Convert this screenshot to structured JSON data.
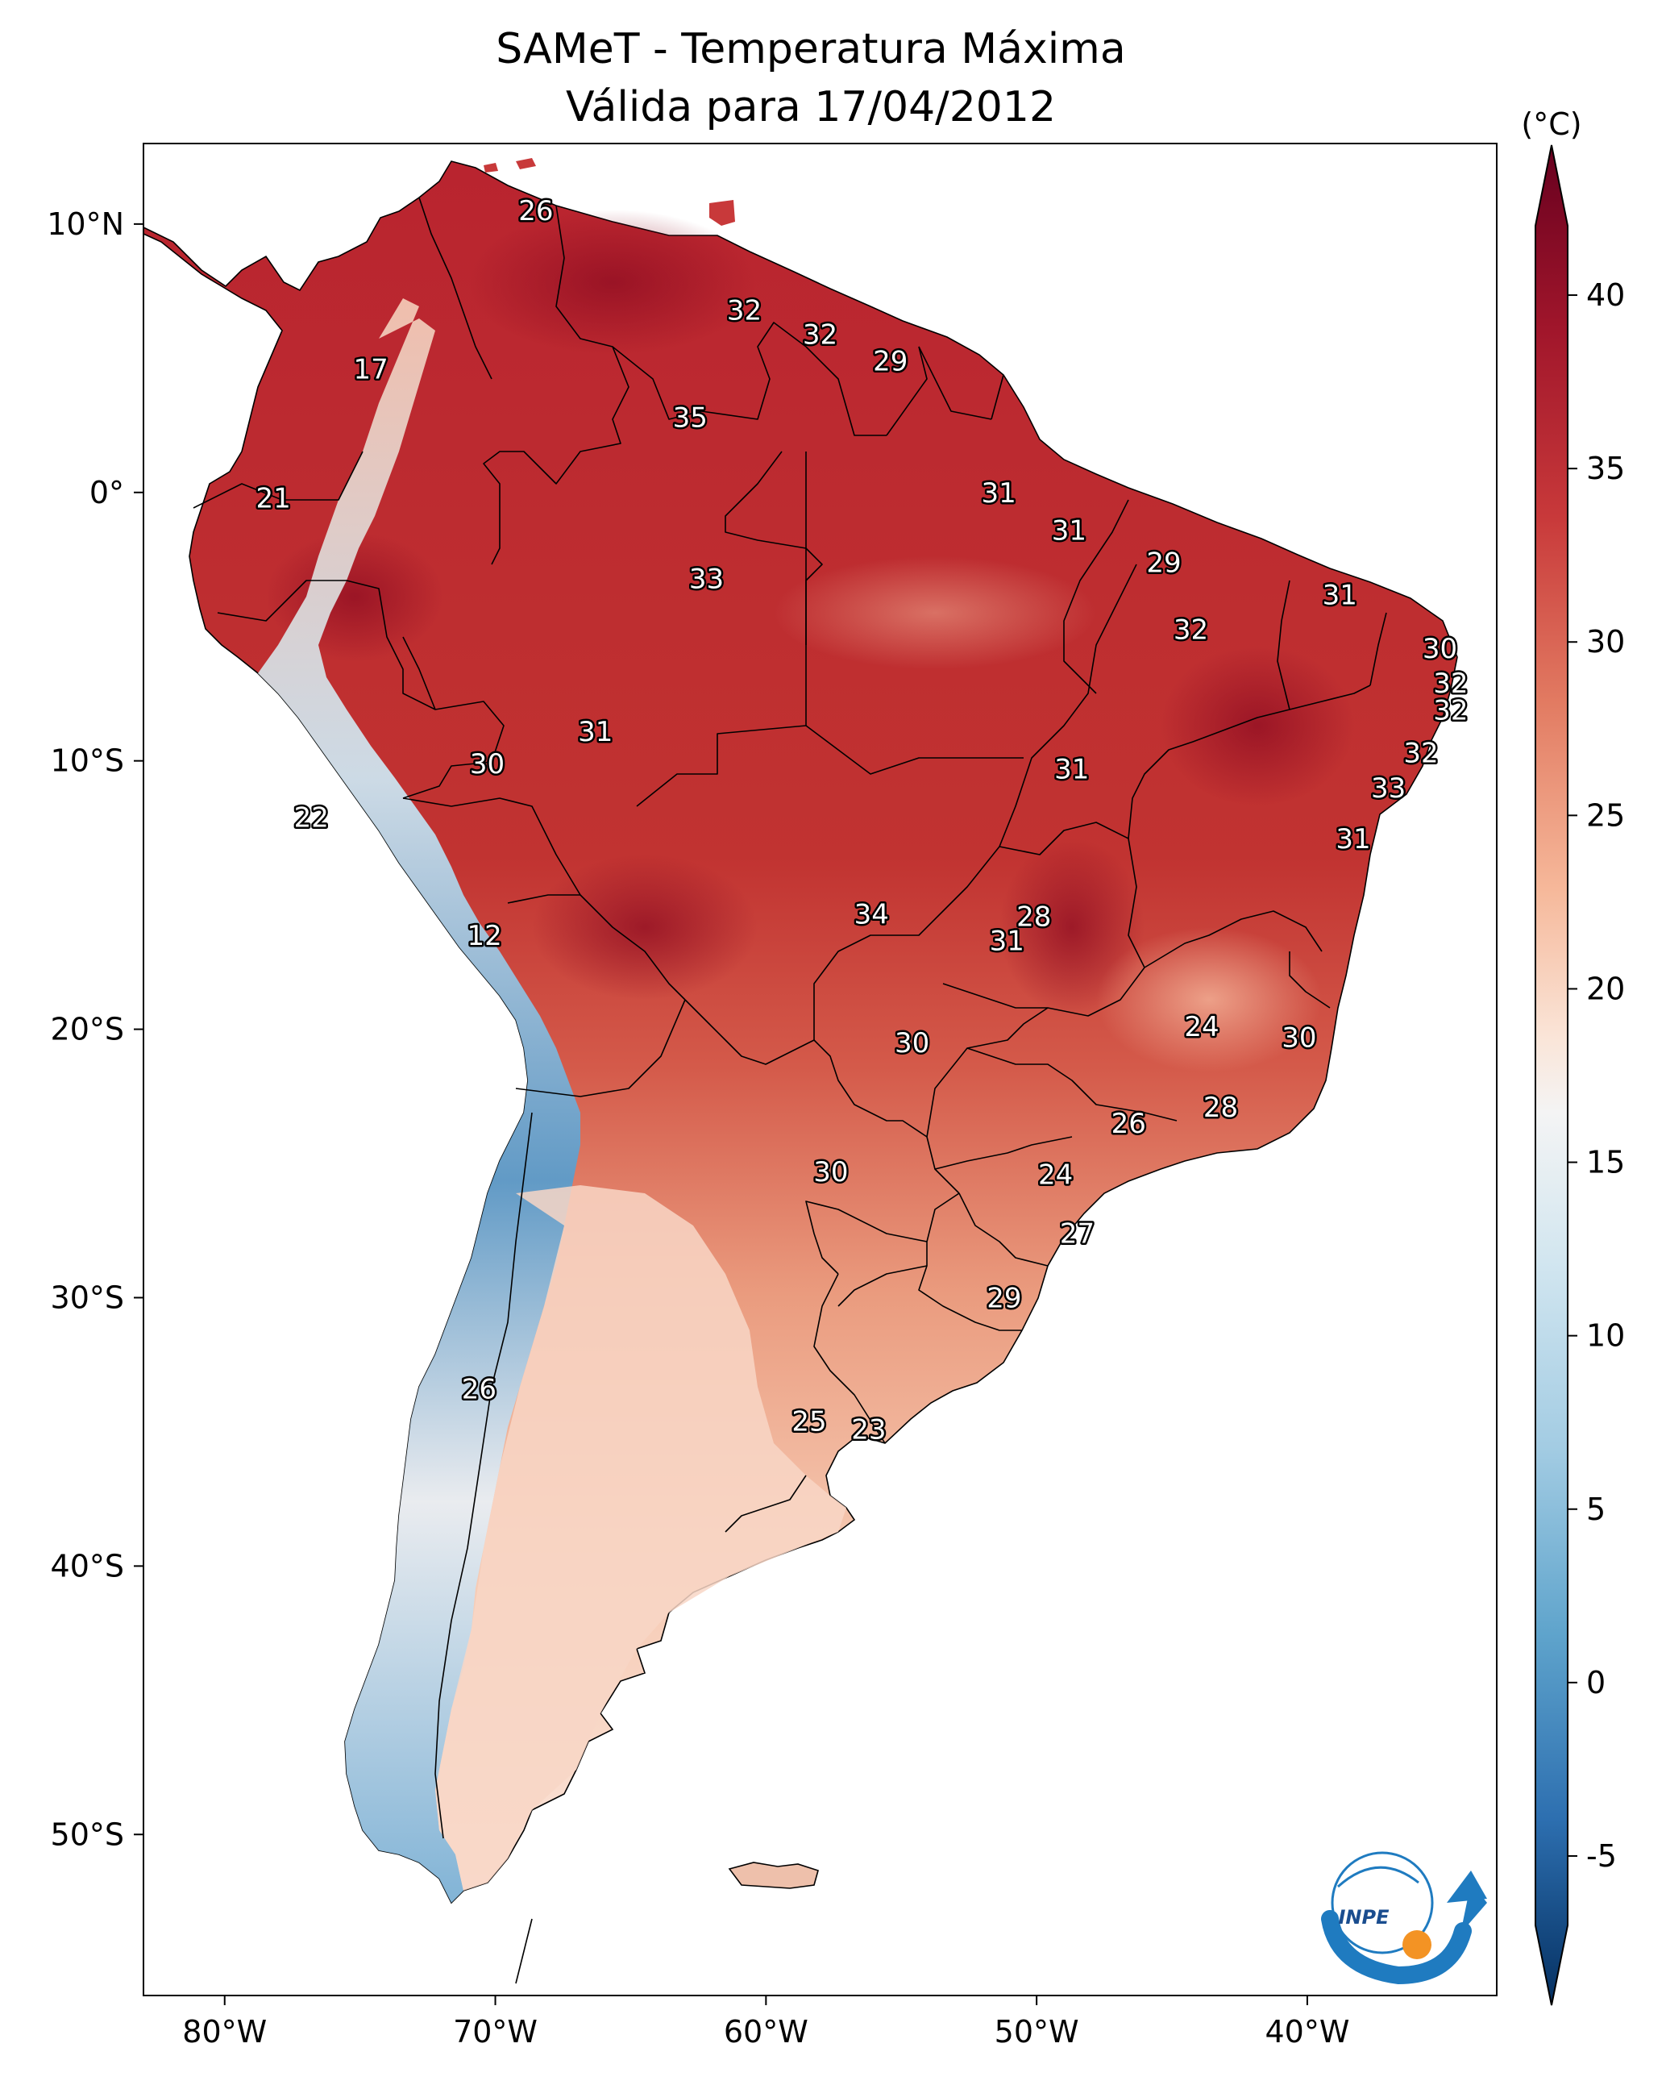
{
  "header": {
    "title_line1": "SAMeT - Temperatura Máxima",
    "title_line2": "Válida para 17/04/2012"
  },
  "map": {
    "lon_ticks": [
      "80°W",
      "70°W",
      "60°W",
      "50°W",
      "40°W"
    ],
    "lat_ticks": [
      "10°N",
      "0°",
      "10°S",
      "20°S",
      "30°S",
      "40°S",
      "50°S"
    ],
    "extent": {
      "lon_min": -83,
      "lon_max": -33,
      "lat_min": -56,
      "lat_max": 13
    },
    "station_labels": [
      {
        "v": "26",
        "lon": -68.5,
        "lat": 10.5
      },
      {
        "v": "17",
        "lon": -74.6,
        "lat": 4.6
      },
      {
        "v": "21",
        "lon": -78.2,
        "lat": -0.2
      },
      {
        "v": "32",
        "lon": -60.8,
        "lat": 6.8
      },
      {
        "v": "32",
        "lon": -58.0,
        "lat": 5.9
      },
      {
        "v": "29",
        "lon": -55.4,
        "lat": 4.9
      },
      {
        "v": "35",
        "lon": -62.8,
        "lat": 2.8
      },
      {
        "v": "31",
        "lon": -51.4,
        "lat": 0.0
      },
      {
        "v": "31",
        "lon": -48.8,
        "lat": -1.4
      },
      {
        "v": "29",
        "lon": -45.3,
        "lat": -2.6
      },
      {
        "v": "31",
        "lon": -38.8,
        "lat": -3.8
      },
      {
        "v": "33",
        "lon": -62.2,
        "lat": -3.2
      },
      {
        "v": "32",
        "lon": -44.3,
        "lat": -5.1
      },
      {
        "v": "30",
        "lon": -35.1,
        "lat": -5.8
      },
      {
        "v": "32",
        "lon": -34.7,
        "lat": -7.1
      },
      {
        "v": "32",
        "lon": -34.7,
        "lat": -8.1
      },
      {
        "v": "31",
        "lon": -66.3,
        "lat": -8.9
      },
      {
        "v": "30",
        "lon": -70.3,
        "lat": -10.1
      },
      {
        "v": "31",
        "lon": -48.7,
        "lat": -10.3
      },
      {
        "v": "32",
        "lon": -35.8,
        "lat": -9.7
      },
      {
        "v": "33",
        "lon": -37.0,
        "lat": -11.0
      },
      {
        "v": "22",
        "lon": -76.8,
        "lat": -12.1
      },
      {
        "v": "31",
        "lon": -38.3,
        "lat": -12.9
      },
      {
        "v": "12",
        "lon": -70.4,
        "lat": -16.5
      },
      {
        "v": "34",
        "lon": -56.1,
        "lat": -15.7
      },
      {
        "v": "28",
        "lon": -50.1,
        "lat": -15.8
      },
      {
        "v": "31",
        "lon": -51.1,
        "lat": -16.7
      },
      {
        "v": "24",
        "lon": -43.9,
        "lat": -19.9
      },
      {
        "v": "30",
        "lon": -40.3,
        "lat": -20.3
      },
      {
        "v": "30",
        "lon": -54.6,
        "lat": -20.5
      },
      {
        "v": "28",
        "lon": -43.2,
        "lat": -22.9
      },
      {
        "v": "26",
        "lon": -46.6,
        "lat": -23.5
      },
      {
        "v": "24",
        "lon": -49.3,
        "lat": -25.4
      },
      {
        "v": "30",
        "lon": -57.6,
        "lat": -25.3
      },
      {
        "v": "27",
        "lon": -48.5,
        "lat": -27.6
      },
      {
        "v": "29",
        "lon": -51.2,
        "lat": -30.0
      },
      {
        "v": "26",
        "lon": -70.6,
        "lat": -33.4
      },
      {
        "v": "25",
        "lon": -58.4,
        "lat": -34.6
      },
      {
        "v": "23",
        "lon": -56.2,
        "lat": -34.9
      }
    ]
  },
  "colorbar": {
    "unit_label": "(°C)",
    "ticks": [
      "40",
      "35",
      "30",
      "25",
      "20",
      "15",
      "10",
      "5",
      "0",
      "-5"
    ],
    "min": -7,
    "max": 42
  },
  "logo": {
    "text": "INPE"
  },
  "colors": {
    "cold": "#053061",
    "neutral": "#f7f7f7",
    "hot": "#67001f",
    "ocean": "#ffffff"
  }
}
